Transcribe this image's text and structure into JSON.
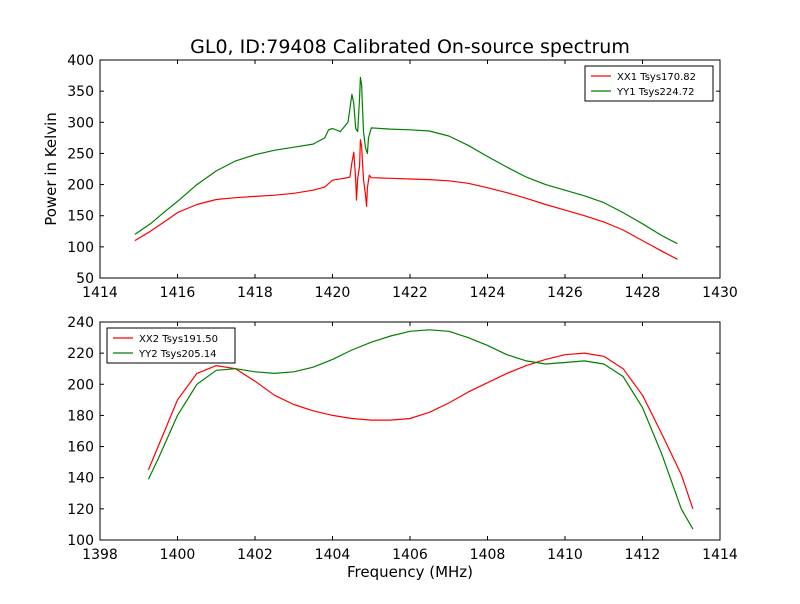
{
  "figure": {
    "title": "GL0, ID:79408 Calibrated On-source spectrum",
    "xlabel_shared": "Frequency (MHz)",
    "ylabel_shared": "Power in Kelvin"
  },
  "colors": {
    "series_red": "#ff0000",
    "series_green": "#007f00"
  },
  "chart_data": [
    {
      "type": "line",
      "title": "GL0, ID:79408 Calibrated On-source spectrum",
      "xlabel": "",
      "ylabel": "Power in Kelvin",
      "xlim": [
        1414,
        1430
      ],
      "ylim": [
        50,
        400
      ],
      "xticks": [
        1414,
        1416,
        1418,
        1420,
        1422,
        1424,
        1426,
        1428,
        1430
      ],
      "yticks": [
        50,
        100,
        150,
        200,
        250,
        300,
        350,
        400
      ],
      "grid": false,
      "legend_position": "top-right",
      "series": [
        {
          "name": "XX1 Tsys170.82",
          "color": "#ff0000",
          "points": [
            [
              1414.9,
              110
            ],
            [
              1415.3,
              125
            ],
            [
              1415.7,
              142
            ],
            [
              1416.0,
              155
            ],
            [
              1416.5,
              168
            ],
            [
              1417.0,
              176
            ],
            [
              1417.5,
              179
            ],
            [
              1418.0,
              181
            ],
            [
              1418.5,
              183
            ],
            [
              1419.0,
              186
            ],
            [
              1419.5,
              191
            ],
            [
              1419.8,
              196
            ],
            [
              1420.0,
              207
            ],
            [
              1420.3,
              210
            ],
            [
              1420.45,
              212
            ],
            [
              1420.5,
              235
            ],
            [
              1420.55,
              252
            ],
            [
              1420.6,
              208
            ],
            [
              1420.62,
              175
            ],
            [
              1420.65,
              210
            ],
            [
              1420.7,
              230
            ],
            [
              1420.72,
              272
            ],
            [
              1420.75,
              262
            ],
            [
              1420.8,
              208
            ],
            [
              1420.85,
              185
            ],
            [
              1420.88,
              165
            ],
            [
              1420.9,
              195
            ],
            [
              1420.95,
              215
            ],
            [
              1421.0,
              211
            ],
            [
              1421.5,
              210
            ],
            [
              1422.0,
              209
            ],
            [
              1422.5,
              208
            ],
            [
              1423.0,
              206
            ],
            [
              1423.5,
              202
            ],
            [
              1424.0,
              195
            ],
            [
              1424.5,
              187
            ],
            [
              1425.0,
              178
            ],
            [
              1425.5,
              168
            ],
            [
              1426.0,
              159
            ],
            [
              1426.5,
              150
            ],
            [
              1427.0,
              140
            ],
            [
              1427.5,
              127
            ],
            [
              1428.0,
              110
            ],
            [
              1428.5,
              93
            ],
            [
              1428.9,
              80
            ]
          ]
        },
        {
          "name": "YY1 Tsys224.72",
          "color": "#007f00",
          "points": [
            [
              1414.9,
              120
            ],
            [
              1415.3,
              137
            ],
            [
              1415.7,
              158
            ],
            [
              1416.0,
              173
            ],
            [
              1416.5,
              200
            ],
            [
              1417.0,
              222
            ],
            [
              1417.5,
              238
            ],
            [
              1418.0,
              248
            ],
            [
              1418.5,
              255
            ],
            [
              1419.0,
              260
            ],
            [
              1419.5,
              265
            ],
            [
              1419.8,
              275
            ],
            [
              1419.9,
              288
            ],
            [
              1420.0,
              290
            ],
            [
              1420.2,
              285
            ],
            [
              1420.4,
              300
            ],
            [
              1420.5,
              345
            ],
            [
              1420.55,
              330
            ],
            [
              1420.6,
              290
            ],
            [
              1420.65,
              285
            ],
            [
              1420.7,
              340
            ],
            [
              1420.72,
              372
            ],
            [
              1420.75,
              360
            ],
            [
              1420.8,
              285
            ],
            [
              1420.85,
              260
            ],
            [
              1420.9,
              250
            ],
            [
              1420.93,
              275
            ],
            [
              1421.0,
              291
            ],
            [
              1421.5,
              289
            ],
            [
              1422.0,
              288
            ],
            [
              1422.5,
              286
            ],
            [
              1423.0,
              278
            ],
            [
              1423.5,
              263
            ],
            [
              1424.0,
              245
            ],
            [
              1424.5,
              228
            ],
            [
              1425.0,
              212
            ],
            [
              1425.5,
              200
            ],
            [
              1426.0,
              191
            ],
            [
              1426.5,
              182
            ],
            [
              1427.0,
              171
            ],
            [
              1427.5,
              155
            ],
            [
              1428.0,
              137
            ],
            [
              1428.5,
              118
            ],
            [
              1428.9,
              105
            ]
          ]
        }
      ]
    },
    {
      "type": "line",
      "title": "",
      "xlabel": "Frequency (MHz)",
      "ylabel": "",
      "xlim": [
        1398,
        1414
      ],
      "ylim": [
        100,
        240
      ],
      "xticks": [
        1398,
        1400,
        1402,
        1404,
        1406,
        1408,
        1410,
        1412,
        1414
      ],
      "yticks": [
        100,
        120,
        140,
        160,
        180,
        200,
        220,
        240
      ],
      "grid": false,
      "legend_position": "top-left",
      "series": [
        {
          "name": "XX2 Tsys191.50",
          "color": "#ff0000",
          "points": [
            [
              1399.25,
              145
            ],
            [
              1399.5,
              160
            ],
            [
              1400.0,
              190
            ],
            [
              1400.5,
              207
            ],
            [
              1401.0,
              212
            ],
            [
              1401.5,
              210
            ],
            [
              1402.0,
              202
            ],
            [
              1402.5,
              193
            ],
            [
              1403.0,
              187
            ],
            [
              1403.5,
              183
            ],
            [
              1404.0,
              180
            ],
            [
              1404.5,
              178
            ],
            [
              1405.0,
              177
            ],
            [
              1405.5,
              177
            ],
            [
              1406.0,
              178
            ],
            [
              1406.5,
              182
            ],
            [
              1407.0,
              188
            ],
            [
              1407.5,
              195
            ],
            [
              1408.0,
              201
            ],
            [
              1408.5,
              207
            ],
            [
              1409.0,
              212
            ],
            [
              1409.5,
              216
            ],
            [
              1410.0,
              219
            ],
            [
              1410.5,
              220
            ],
            [
              1411.0,
              218
            ],
            [
              1411.5,
              210
            ],
            [
              1412.0,
              193
            ],
            [
              1412.5,
              168
            ],
            [
              1413.0,
              142
            ],
            [
              1413.3,
              120
            ]
          ]
        },
        {
          "name": "YY2 Tsys205.14",
          "color": "#007f00",
          "points": [
            [
              1399.25,
              139
            ],
            [
              1399.5,
              152
            ],
            [
              1400.0,
              180
            ],
            [
              1400.5,
              200
            ],
            [
              1401.0,
              209
            ],
            [
              1401.5,
              210
            ],
            [
              1402.0,
              208
            ],
            [
              1402.5,
              207
            ],
            [
              1403.0,
              208
            ],
            [
              1403.5,
              211
            ],
            [
              1404.0,
              216
            ],
            [
              1404.5,
              222
            ],
            [
              1405.0,
              227
            ],
            [
              1405.5,
              231
            ],
            [
              1406.0,
              234
            ],
            [
              1406.5,
              235
            ],
            [
              1407.0,
              234
            ],
            [
              1407.5,
              230
            ],
            [
              1408.0,
              225
            ],
            [
              1408.5,
              219
            ],
            [
              1409.0,
              215
            ],
            [
              1409.5,
              213
            ],
            [
              1410.0,
              214
            ],
            [
              1410.5,
              215
            ],
            [
              1411.0,
              213
            ],
            [
              1411.5,
              205
            ],
            [
              1412.0,
              185
            ],
            [
              1412.5,
              155
            ],
            [
              1413.0,
              120
            ],
            [
              1413.3,
              107
            ]
          ]
        }
      ]
    }
  ]
}
